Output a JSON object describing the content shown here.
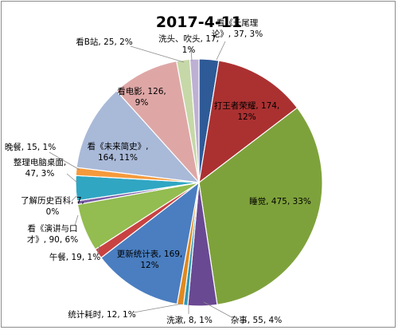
{
  "chart_data": {
    "type": "pie",
    "title": "2017-4-11",
    "slices": [
      {
        "name": "看《长尾理论》",
        "value": 37,
        "label_lines": [
          "看《长尾理",
          "论》, 37, 3%"
        ],
        "color": "#2e5a97"
      },
      {
        "name": "打王者荣耀",
        "value": 174,
        "label_lines": [
          "打王者荣耀, 174,",
          "12%"
        ],
        "color": "#ab3131"
      },
      {
        "name": "睡觉",
        "value": 475,
        "label_lines": [
          "睡觉, 475, 33%"
        ],
        "color": "#7ea23b"
      },
      {
        "name": "杂事",
        "value": 55,
        "label_lines": [
          "杂事, 55, 4%"
        ],
        "color": "#6a4993"
      },
      {
        "name": "洗漱",
        "value": 8,
        "label_lines": [
          "洗漱, 8, 1%"
        ],
        "color": "#2f98b4"
      },
      {
        "name": "统计耗时",
        "value": 12,
        "label_lines": [
          "统计耗时, 12, 1%"
        ],
        "color": "#e1891f"
      },
      {
        "name": "更新统计表",
        "value": 169,
        "label_lines": [
          "更新统计表, 169,",
          "12%"
        ],
        "color": "#4a7ec0"
      },
      {
        "name": "午餐",
        "value": 19,
        "label_lines": [
          "午餐, 19, 1%"
        ],
        "color": "#c94242"
      },
      {
        "name": "看《演讲与口才》",
        "value": 90,
        "label_lines": [
          "看《演讲与口",
          "才》, 90, 6%"
        ],
        "color": "#93bc51"
      },
      {
        "name": "了解历史百科",
        "value": 7,
        "label_lines": [
          "了解历史百科, 7,",
          "0%"
        ],
        "color": "#7a5ea8"
      },
      {
        "name": "整理电脑桌面",
        "value": 47,
        "label_lines": [
          "整理电脑桌面,",
          "47, 3%"
        ],
        "color": "#30a6c3"
      },
      {
        "name": "晚餐",
        "value": 15,
        "label_lines": [
          "晚餐, 15, 1%"
        ],
        "color": "#f59a3c"
      },
      {
        "name": "看《未来简史》",
        "value": 164,
        "label_lines": [
          "看《未来简史》,",
          "164, 11%"
        ],
        "color": "#a9b9d8"
      },
      {
        "name": "看电影",
        "value": 126,
        "label_lines": [
          "看电影, 126,",
          "9%"
        ],
        "color": "#dea7a6"
      },
      {
        "name": "看B站",
        "value": 25,
        "label_lines": [
          "看B站, 25, 2%"
        ],
        "color": "#c6d8a8"
      },
      {
        "name": "洗头、吹头",
        "value": 17,
        "label_lines": [
          "洗头、吹头, 17,",
          "1%"
        ],
        "color": "#bdb0d4"
      }
    ]
  }
}
